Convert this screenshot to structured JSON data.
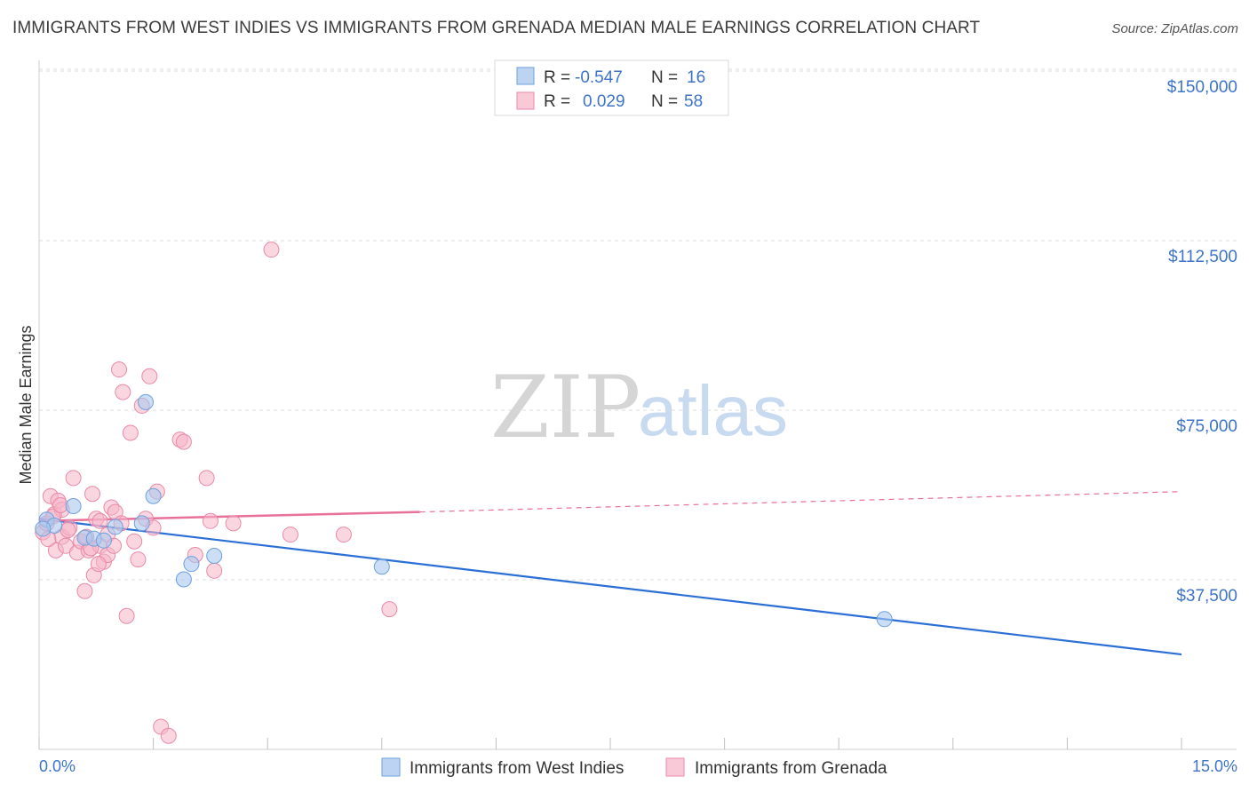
{
  "title": "IMMIGRANTS FROM WEST INDIES VS IMMIGRANTS FROM GRENADA MEDIAN MALE EARNINGS CORRELATION CHART",
  "source": "Source: ZipAtlas.com",
  "watermark": {
    "zip": "ZIP",
    "atlas": "atlas"
  },
  "legend": {
    "rows": [
      {
        "r_label": "R =",
        "r_value": "-0.547",
        "n_label": "N =",
        "n_value": "16"
      },
      {
        "r_label": "R =",
        "r_value": "0.029",
        "n_label": "N =",
        "n_value": "58"
      }
    ]
  },
  "colors": {
    "blue": "#a9c8ef",
    "blue_stroke": "#6fa0dd",
    "blue_line": "#2b6fd6",
    "pink": "#f5b5c8",
    "pink_stroke": "#e98aa8",
    "pink_line": "#e8709a",
    "accent_text": "#3d74c9"
  },
  "chart_data": {
    "type": "scatter",
    "title": "IMMIGRANTS FROM WEST INDIES VS IMMIGRANTS FROM GRENADA MEDIAN MALE EARNINGS CORRELATION CHART",
    "ylabel": "Median Male Earnings",
    "xlim": [
      0,
      15
    ],
    "ylim": [
      0,
      155000
    ],
    "x_tick_labels": [
      "0.0%",
      "15.0%"
    ],
    "y_ticks": [
      {
        "value": 37500,
        "label": "$37,500"
      },
      {
        "value": 75000,
        "label": "$75,000"
      },
      {
        "value": 112500,
        "label": "$112,500"
      },
      {
        "value": 150000,
        "label": "$150,000"
      }
    ],
    "grid": true,
    "series": [
      {
        "name": "Immigrants from West Indies",
        "color": "blue",
        "points": [
          [
            0.1,
            50800
          ],
          [
            0.2,
            49500
          ],
          [
            0.45,
            53800
          ],
          [
            0.6,
            46800
          ],
          [
            0.72,
            46600
          ],
          [
            0.85,
            46200
          ],
          [
            1.0,
            49200
          ],
          [
            1.35,
            50000
          ],
          [
            1.4,
            76800
          ],
          [
            1.5,
            56000
          ],
          [
            1.9,
            37600
          ],
          [
            2.0,
            41000
          ],
          [
            2.3,
            42800
          ],
          [
            4.5,
            40400
          ],
          [
            11.1,
            28800
          ],
          [
            0.05,
            48800
          ]
        ],
        "trend": {
          "x0": 0,
          "y0": 51000,
          "x1": 15,
          "y1": 21000
        }
      },
      {
        "name": "Immigrants from Grenada",
        "color": "pink",
        "points": [
          [
            0.05,
            48000
          ],
          [
            0.1,
            50000
          ],
          [
            0.15,
            56000
          ],
          [
            0.2,
            52000
          ],
          [
            0.22,
            44000
          ],
          [
            0.25,
            55000
          ],
          [
            0.3,
            47000
          ],
          [
            0.3,
            53000
          ],
          [
            0.35,
            45000
          ],
          [
            0.4,
            49000
          ],
          [
            0.45,
            60000
          ],
          [
            0.5,
            43500
          ],
          [
            0.55,
            46000
          ],
          [
            0.6,
            35000
          ],
          [
            0.62,
            47000
          ],
          [
            0.65,
            44000
          ],
          [
            0.7,
            56500
          ],
          [
            0.72,
            38500
          ],
          [
            0.75,
            51000
          ],
          [
            0.8,
            50500
          ],
          [
            0.8,
            45000
          ],
          [
            0.85,
            41500
          ],
          [
            0.9,
            47500
          ],
          [
            0.9,
            43000
          ],
          [
            0.95,
            53500
          ],
          [
            1.0,
            52500
          ],
          [
            1.05,
            84000
          ],
          [
            1.1,
            79000
          ],
          [
            1.15,
            29500
          ],
          [
            1.2,
            70000
          ],
          [
            1.25,
            46000
          ],
          [
            1.3,
            42000
          ],
          [
            1.35,
            76000
          ],
          [
            1.4,
            51000
          ],
          [
            1.45,
            82500
          ],
          [
            1.5,
            49000
          ],
          [
            1.55,
            57000
          ],
          [
            1.6,
            5000
          ],
          [
            1.7,
            3000
          ],
          [
            1.85,
            68500
          ],
          [
            1.9,
            68000
          ],
          [
            2.05,
            43000
          ],
          [
            2.2,
            60000
          ],
          [
            2.25,
            50500
          ],
          [
            2.3,
            39500
          ],
          [
            2.55,
            50000
          ],
          [
            3.05,
            110500
          ],
          [
            3.3,
            47500
          ],
          [
            4.0,
            47500
          ],
          [
            4.6,
            31000
          ],
          [
            0.12,
            46500
          ],
          [
            0.18,
            51500
          ],
          [
            0.28,
            54000
          ],
          [
            0.38,
            48500
          ],
          [
            0.68,
            44500
          ],
          [
            0.78,
            41000
          ],
          [
            1.08,
            50000
          ],
          [
            0.98,
            45000
          ]
        ],
        "trend": {
          "x0": 0,
          "y0": 50500,
          "x1": 5.0,
          "y1": 52500,
          "dashed_x1": 15,
          "dashed_y1": 57000
        }
      }
    ]
  },
  "bottom_legend": [
    {
      "label": "Immigrants from West Indies",
      "color": "blue"
    },
    {
      "label": "Immigrants from Grenada",
      "color": "pink"
    }
  ]
}
